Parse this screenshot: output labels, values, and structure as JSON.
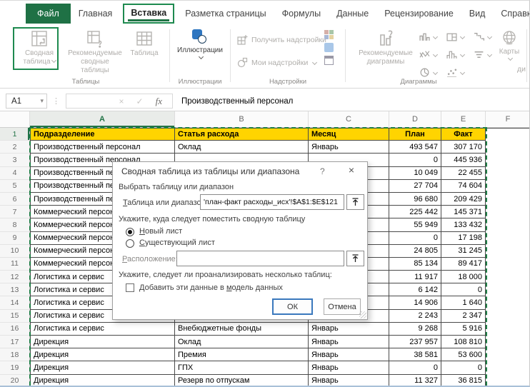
{
  "colors": {
    "accent_green": "#217346",
    "annotation_green": "#1e8a4f",
    "file_tab_bg": "#1f7145",
    "header_yellow": "#ffd400",
    "grid_border": "#4a4a4a",
    "marching_ants": "#1e7e45",
    "disabled_text": "#b0aeab",
    "ok_button_border": "#3a78bd"
  },
  "tabs": {
    "file": "Файл",
    "items": [
      "Главная",
      "Вставка",
      "Разметка страницы",
      "Формулы",
      "Данные",
      "Рецензирование",
      "Вид",
      "Справка"
    ],
    "active": "Вставка"
  },
  "ribbon": {
    "tables_group": {
      "label": "Таблицы",
      "pivot_button": "Сводная таблица",
      "recommended_pivots_button": "Рекомендуемые сводные таблицы",
      "table_button": "Таблица"
    },
    "illustrations_group": {
      "label": "Иллюстрации",
      "illustrations_button": "Иллюстрации"
    },
    "addins_group": {
      "label": "Надстройки",
      "get_addins_button": "Получить надстройки",
      "my_addins_button": "Мои надстройки"
    },
    "charts_group": {
      "label": "Диаграммы",
      "recommended_charts_button": "Рекомендуемые диаграммы",
      "maps_button": "Карты",
      "clipped_text": "ди"
    }
  },
  "icons": {
    "name_box_dropdown": "▾",
    "separator_dots": "⋮",
    "formula_cancel": "×",
    "formula_enter": "✓",
    "formula_function": "fx",
    "dialog_help": "?",
    "dialog_close": "×"
  },
  "formula_bar": {
    "name_box": "A1",
    "content": "Производственный персонал"
  },
  "sheet": {
    "columns": [
      "A",
      "B",
      "C",
      "D",
      "E",
      "F"
    ],
    "selected_column": "A",
    "selected_row": "1",
    "rows": [
      {
        "num": "1",
        "header": true,
        "a": "Подразделение",
        "b": "Статья расхода",
        "c": "Месяц",
        "d": "План",
        "e": "Факт"
      },
      {
        "num": "2",
        "a": "Производственный персонал",
        "b": "Оклад",
        "c": "Январь",
        "d": "493 547",
        "e": "307 170"
      },
      {
        "num": "3",
        "a": "Производственный персонал",
        "b": "",
        "c": "",
        "d": "0",
        "e": "445 936"
      },
      {
        "num": "4",
        "a": "Производственный персонал",
        "b": "",
        "c": "",
        "d": "10 049",
        "e": "22 455"
      },
      {
        "num": "5",
        "a": "Производственный персонал",
        "b": "",
        "c": "",
        "d": "27 704",
        "e": "74 604"
      },
      {
        "num": "6",
        "a": "Производственный персонал",
        "b": "",
        "c": "",
        "d": "96 680",
        "e": "209 429"
      },
      {
        "num": "7",
        "a": "Коммерческий персонал",
        "b": "",
        "c": "",
        "d": "225 442",
        "e": "145 371"
      },
      {
        "num": "8",
        "a": "Коммерческий персонал",
        "b": "",
        "c": "",
        "d": "55 949",
        "e": "133 432"
      },
      {
        "num": "9",
        "a": "Коммерческий персонал",
        "b": "",
        "c": "",
        "d": "0",
        "e": "17 198"
      },
      {
        "num": "10",
        "a": "Коммерческий персонал",
        "b": "",
        "c": "",
        "d": "24 805",
        "e": "31 245"
      },
      {
        "num": "11",
        "a": "Коммерческий персонал",
        "b": "",
        "c": "",
        "d": "85 134",
        "e": "89 417"
      },
      {
        "num": "12",
        "a": "Логистика и сервис",
        "b": "",
        "c": "",
        "d": "11 917",
        "e": "18 000"
      },
      {
        "num": "13",
        "a": "Логистика и сервис",
        "b": "",
        "c": "",
        "d": "6 142",
        "e": "0"
      },
      {
        "num": "14",
        "a": "Логистика и сервис",
        "b": "",
        "c": "",
        "d": "14 906",
        "e": "1 640"
      },
      {
        "num": "15",
        "a": "Логистика и сервис",
        "b": "",
        "c": "",
        "d": "2 243",
        "e": "2 347"
      },
      {
        "num": "16",
        "a": "Логистика и сервис",
        "b": "Внебюджетные фонды",
        "c": "Январь",
        "d": "9 268",
        "e": "5 916"
      },
      {
        "num": "17",
        "a": "Дирекция",
        "b": "Оклад",
        "c": "Январь",
        "d": "237 957",
        "e": "108 810"
      },
      {
        "num": "18",
        "a": "Дирекция",
        "b": "Премия",
        "c": "Январь",
        "d": "38 581",
        "e": "53 600"
      },
      {
        "num": "19",
        "a": "Дирекция",
        "b": "ГПХ",
        "c": "Январь",
        "d": "0",
        "e": "0"
      },
      {
        "num": "20",
        "a": "Дирекция",
        "b": "Резерв по отпускам",
        "c": "Январь",
        "d": "11 327",
        "e": "36 815"
      }
    ]
  },
  "dialog": {
    "title": "Сводная таблица из таблицы или диапазона",
    "select_heading": "Выбрать таблицу или диапазон",
    "range_label": [
      "",
      "Т",
      "аблица или диапазон:"
    ],
    "range_value": "'план-факт расходы_исх'!$A$1:$E$121",
    "where_heading": "Укажите, куда следует поместить сводную таблицу",
    "new_sheet_radio": [
      "",
      "Н",
      "овый лист"
    ],
    "existing_sheet_radio": [
      "",
      "С",
      "уществующий лист"
    ],
    "location_label": [
      "",
      "Р",
      "асположение:"
    ],
    "location_value": "",
    "multi_heading": "Укажите, следует ли проанализировать несколько таблиц:",
    "data_model_checkbox": [
      "Добавить эти данные в ",
      "м",
      "одель данных"
    ],
    "ok_button": "ОК",
    "cancel_button": "Отмена"
  }
}
